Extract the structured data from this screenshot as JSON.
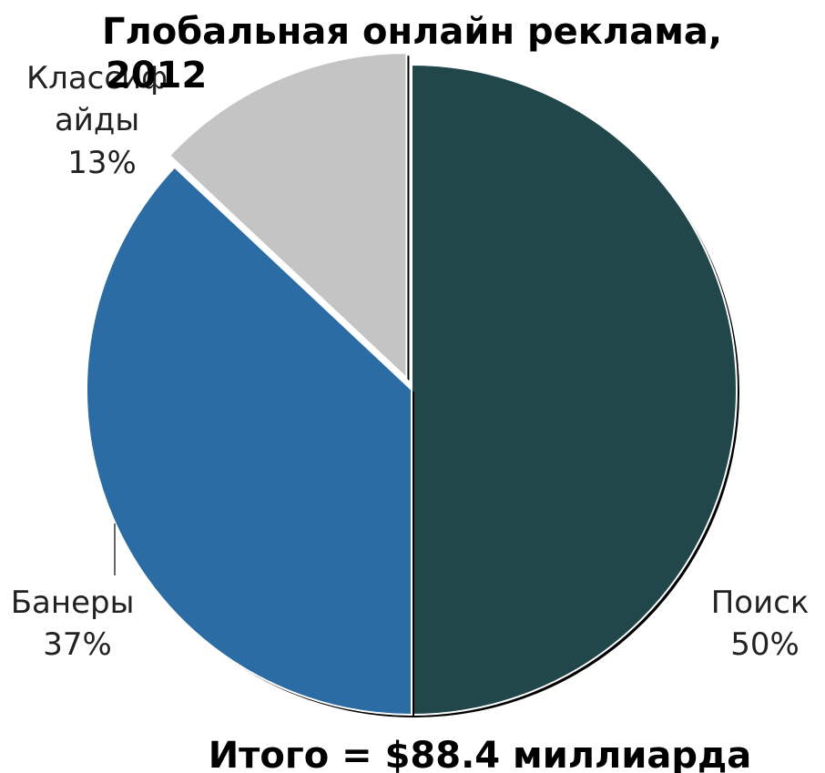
{
  "chart_data": {
    "type": "pie",
    "title": "Глобальная онлайн реклама, 2012",
    "title_lines": [
      "Глобальная онлайн реклама,",
      "2012"
    ],
    "total_label": "Итого = $88.4 миллиарда",
    "unit": "%",
    "grid": false,
    "legend": "none",
    "slices": [
      {
        "key": "search",
        "label": "Поиск",
        "label_lines": [
          "Поиск"
        ],
        "value": 50,
        "value_label": "50%",
        "color": "#21474a",
        "exploded": false
      },
      {
        "key": "banners",
        "label": "Банеры",
        "label_lines": [
          "Банеры"
        ],
        "value": 37,
        "value_label": "37%",
        "color": "#2a6ca3",
        "exploded": false
      },
      {
        "key": "classifieds",
        "label": "Классифайды",
        "label_lines": [
          "Класcиф",
          "айды"
        ],
        "value": 13,
        "value_label": "13%",
        "color": "#c4c4c4",
        "exploded": true
      }
    ]
  }
}
